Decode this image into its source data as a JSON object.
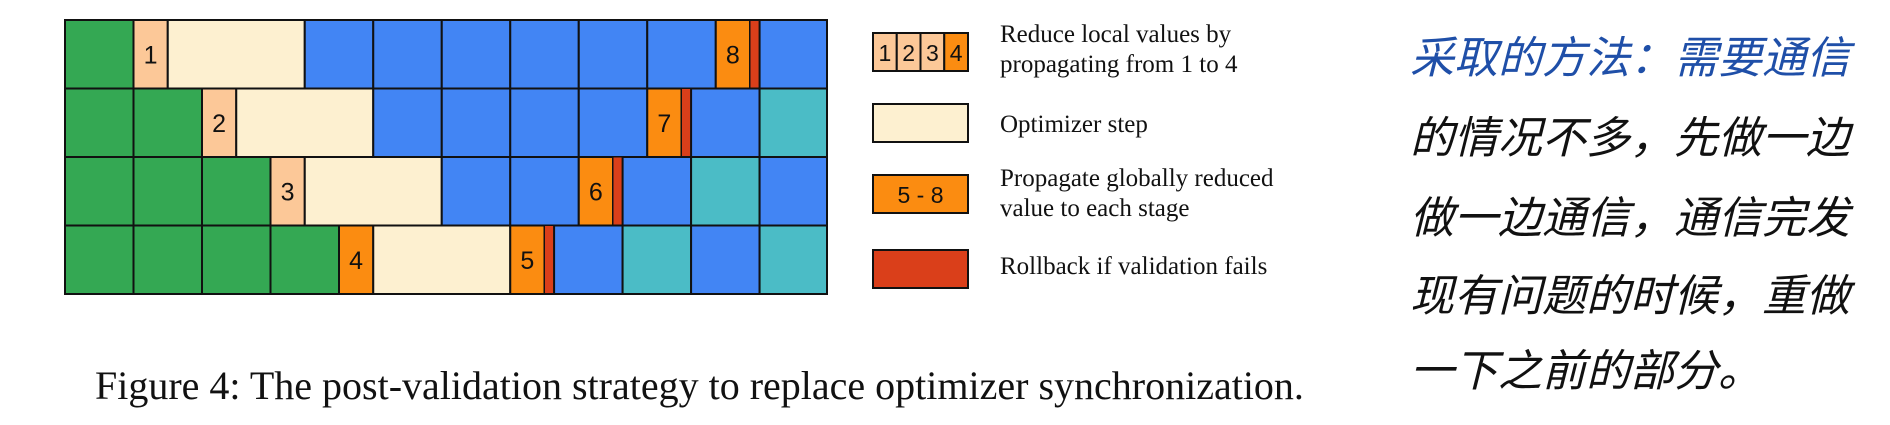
{
  "colors": {
    "forward": "#34a853",
    "backward": "#4285f4",
    "wait": "#4bbcc6",
    "reduce_light": "#fcc898",
    "optimizer": "#fdf0d0",
    "propagate": "#fb8c11",
    "rollback": "#da3f1a",
    "border": "#111111"
  },
  "pipeline": {
    "stages": [
      {
        "id": "stage-1",
        "segments": [
          {
            "kind": "forward",
            "span": 1
          },
          {
            "kind": "reduce_light",
            "span": 0.5,
            "label": "1"
          },
          {
            "kind": "optimizer",
            "span": 2
          },
          {
            "kind": "backward",
            "span": 6
          },
          {
            "kind": "propagate",
            "span": 0.5,
            "label": "8"
          },
          {
            "kind": "rollback",
            "span": 0.14
          },
          {
            "kind": "backward",
            "span": 1.1
          }
        ]
      },
      {
        "id": "stage-2",
        "segments": [
          {
            "kind": "forward",
            "span": 2
          },
          {
            "kind": "reduce_light",
            "span": 0.5,
            "label": "2"
          },
          {
            "kind": "optimizer",
            "span": 2
          },
          {
            "kind": "backward",
            "span": 4
          },
          {
            "kind": "propagate",
            "span": 0.5,
            "label": "7"
          },
          {
            "kind": "rollback",
            "span": 0.14
          },
          {
            "kind": "backward",
            "span": 1
          },
          {
            "kind": "wait",
            "span": 1
          }
        ]
      },
      {
        "id": "stage-3",
        "segments": [
          {
            "kind": "forward",
            "span": 3
          },
          {
            "kind": "reduce_light",
            "span": 0.5,
            "label": "3"
          },
          {
            "kind": "optimizer",
            "span": 2
          },
          {
            "kind": "backward",
            "span": 2
          },
          {
            "kind": "propagate",
            "span": 0.5,
            "label": "6"
          },
          {
            "kind": "rollback",
            "span": 0.14
          },
          {
            "kind": "backward",
            "span": 1
          },
          {
            "kind": "wait",
            "span": 1
          },
          {
            "kind": "backward",
            "span": 1
          }
        ]
      },
      {
        "id": "stage-4",
        "segments": [
          {
            "kind": "forward",
            "span": 4
          },
          {
            "kind": "propagate",
            "span": 0.5,
            "label": "4"
          },
          {
            "kind": "optimizer",
            "span": 2
          },
          {
            "kind": "propagate",
            "span": 0.5,
            "label": "5"
          },
          {
            "kind": "rollback",
            "span": 0.14
          },
          {
            "kind": "backward",
            "span": 1
          },
          {
            "kind": "wait",
            "span": 1
          },
          {
            "kind": "backward",
            "span": 1
          },
          {
            "kind": "wait",
            "span": 1
          }
        ]
      }
    ]
  },
  "legend": {
    "swatch_labels": [
      "1",
      "2",
      "3",
      "4"
    ],
    "items": [
      {
        "id": "reduce",
        "line1": "Reduce local values by",
        "line2": "propagating from 1 to 4"
      },
      {
        "id": "optimizer",
        "line1": "Optimizer step"
      },
      {
        "id": "propagate",
        "swatch_label": "5 - 8",
        "line1": "Propagate globally reduced",
        "line2": "value to each stage"
      },
      {
        "id": "rollback",
        "line1": "Rollback if validation fails"
      }
    ]
  },
  "caption": "Figure 4: The post-validation strategy to replace optimizer synchronization.",
  "handwritten_note": {
    "lines": [
      "采取的方法：需要通信",
      "的情况不多，先做一边",
      "做一边通信，通信完发",
      "现有问题的时候，重做",
      "一下之前的部分。"
    ]
  }
}
